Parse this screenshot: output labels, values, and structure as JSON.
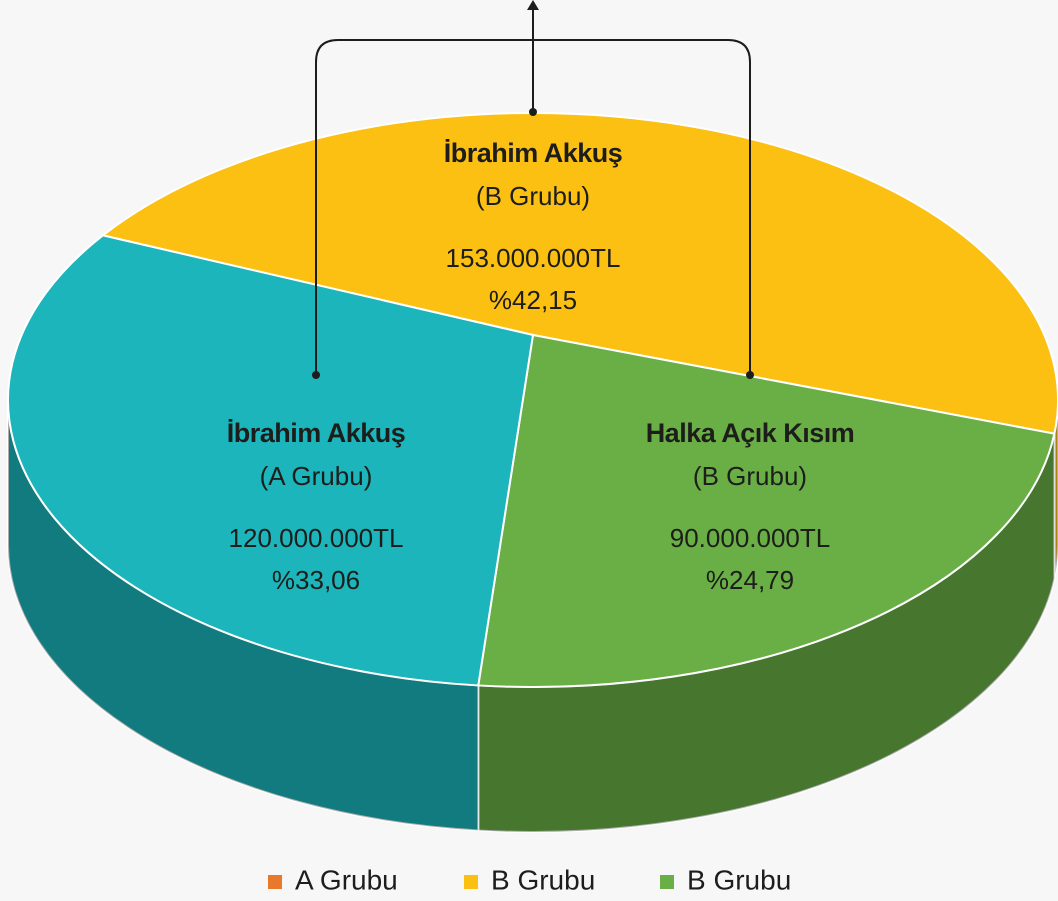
{
  "chart_data": {
    "type": "pie",
    "categories": [
      "İbrahim Akkuş",
      "Halka Açık Kısım",
      "İbrahim Akkuş"
    ],
    "groups": [
      "(B Grubu)",
      "(B Grubu)",
      "(A Grubu)"
    ],
    "values": [
      42.15,
      24.79,
      33.06
    ],
    "value_labels": [
      "%42,15",
      "%24,79",
      "%33,06"
    ],
    "amounts": [
      153000000,
      90000000,
      120000000
    ],
    "amount_labels": [
      "153.000.000TL",
      "90.000.000TL",
      "120.000.000TL"
    ],
    "colors": [
      "#fcc013",
      "#69af45",
      "#1bb5bb"
    ],
    "legend": [
      {
        "name": "A Grubu",
        "color": "#e8782a"
      },
      {
        "name": "B Grubu",
        "color": "#fcc013"
      },
      {
        "name": "B Grubu",
        "color": "#69af45"
      }
    ]
  }
}
